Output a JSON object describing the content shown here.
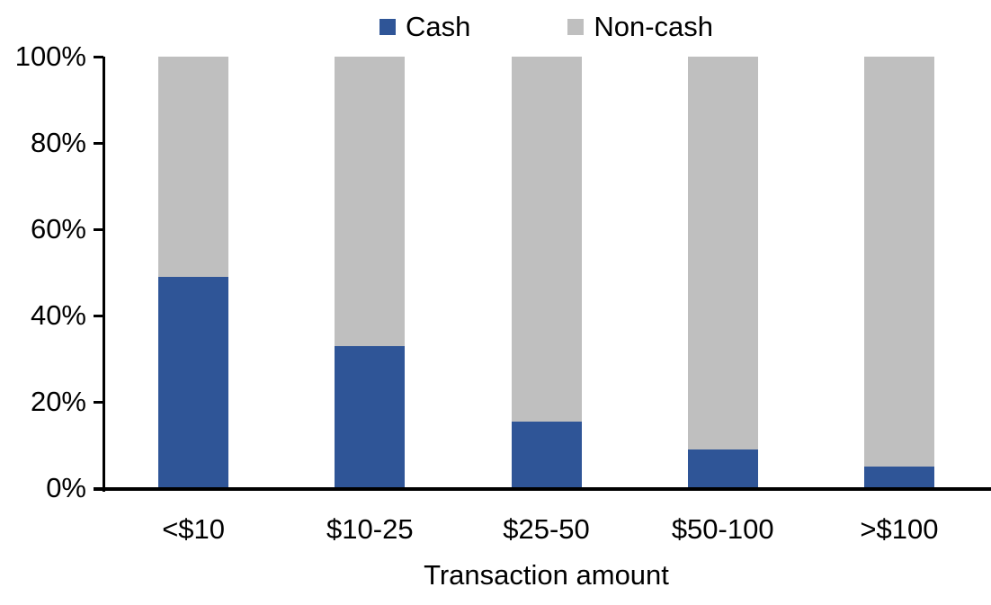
{
  "chart_data": {
    "type": "bar",
    "stacked": true,
    "categories": [
      "<$10",
      "$10-25",
      "$25-50",
      "$50-100",
      ">$100"
    ],
    "series": [
      {
        "name": "Cash",
        "color": "#2F5597",
        "values": [
          49,
          33,
          15.5,
          9,
          5
        ]
      },
      {
        "name": "Non-cash",
        "color": "#BFBFBF",
        "values": [
          51,
          67,
          84.5,
          91,
          95
        ]
      }
    ],
    "xlabel": "Transaction amount",
    "ylabel": "",
    "ylim": [
      0,
      100
    ],
    "yticks": [
      "0%",
      "20%",
      "40%",
      "60%",
      "80%",
      "100%"
    ],
    "legend_position": "top",
    "grid": false,
    "axis_color": "#000000",
    "background": "#FFFFFF"
  }
}
